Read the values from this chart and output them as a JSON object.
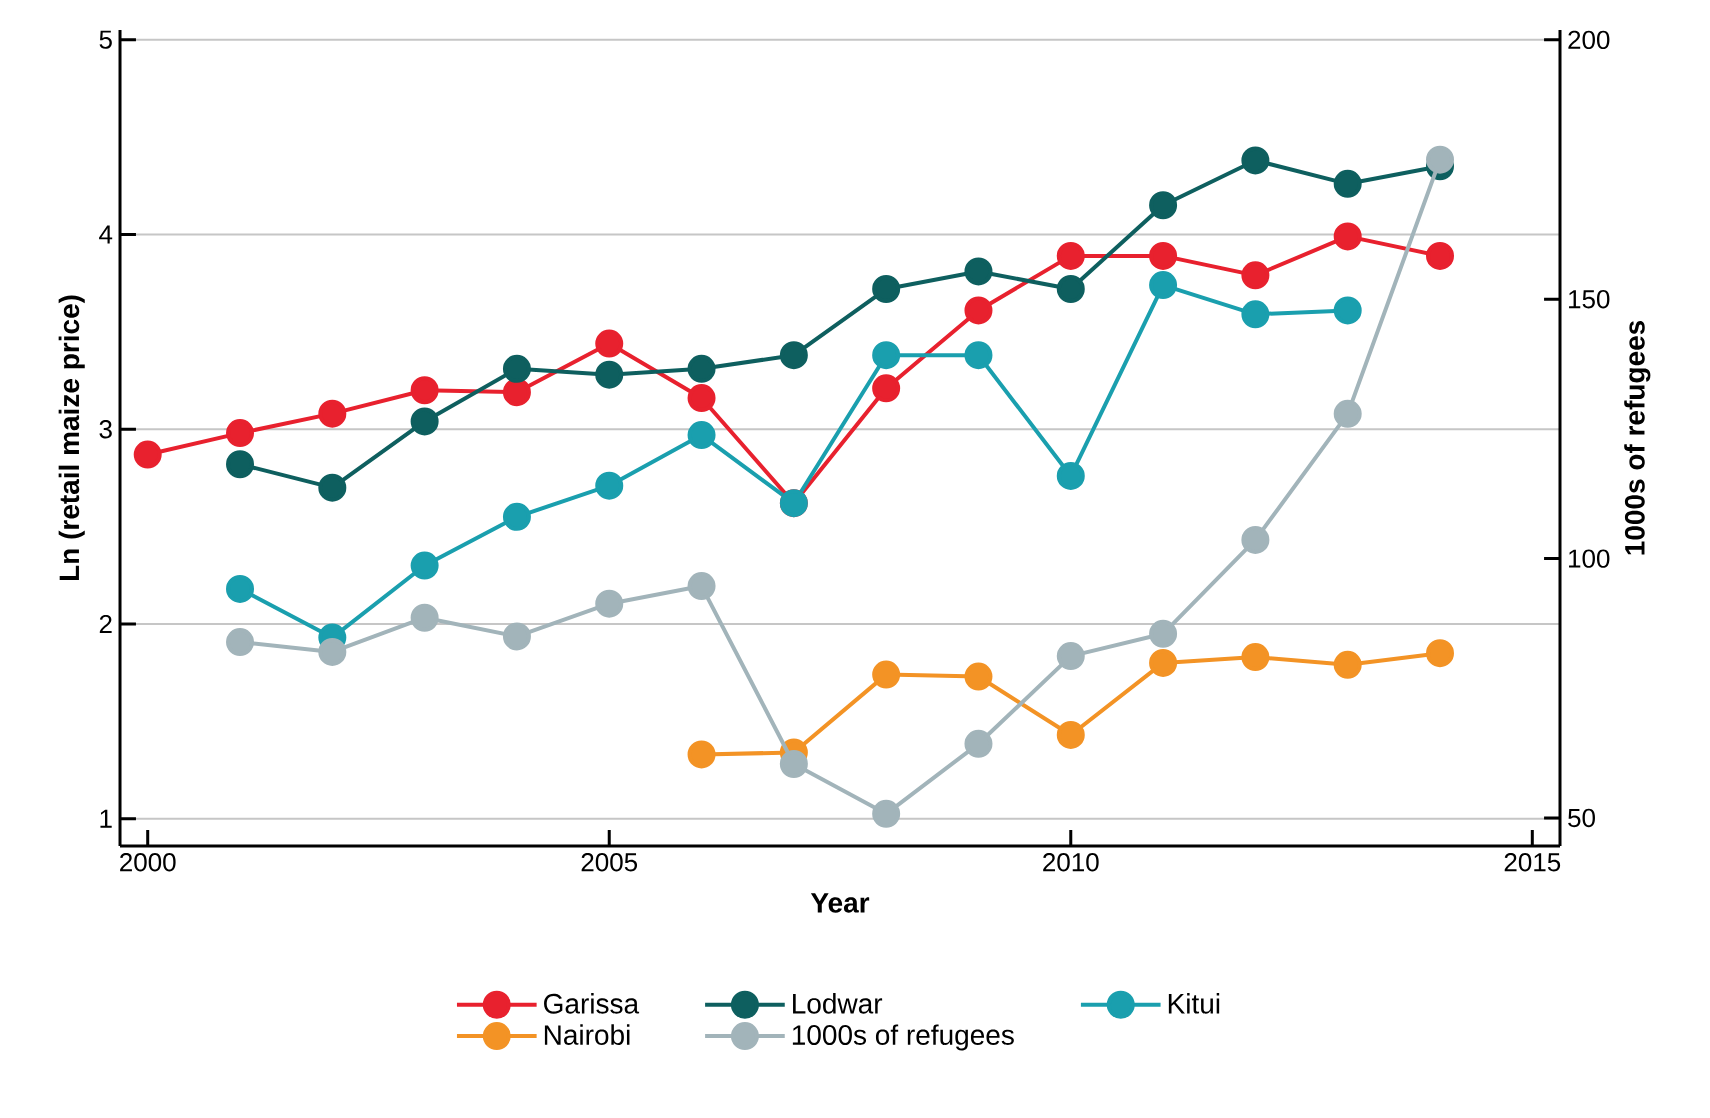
{
  "chart_data": {
    "type": "line",
    "xlabel": "Year",
    "ylabel": "Ln (retail maize price)",
    "y2label": "1000s of refugees",
    "xlim": [
      1999.7,
      2015.3
    ],
    "xticks": [
      2000,
      2005,
      2010,
      2015
    ],
    "ylim": [
      0.86,
      5.05
    ],
    "yticks": [
      1,
      2,
      3,
      4,
      5
    ],
    "y2lim": [
      44.6,
      201.9
    ],
    "y2ticks": [
      50,
      100,
      150,
      200
    ],
    "grid": "y",
    "legend": "bottom",
    "marker": "circle",
    "line_style": "solid",
    "series": [
      {
        "name": "Garissa",
        "color": "#e8212e",
        "x": [
          2000,
          2001,
          2002,
          2003,
          2004,
          2005,
          2006,
          2007,
          2008,
          2009,
          2010,
          2011,
          2012,
          2013,
          2014
        ],
        "values": [
          2.87,
          2.98,
          3.08,
          3.2,
          3.19,
          3.44,
          3.16,
          2.62,
          3.21,
          3.61,
          3.89,
          3.89,
          3.79,
          3.99,
          3.89
        ]
      },
      {
        "name": "Lodwar",
        "color": "#0e5f5f",
        "x": [
          2001,
          2002,
          2003,
          2004,
          2005,
          2006,
          2007,
          2008,
          2009,
          2010,
          2011,
          2012,
          2013,
          2014
        ],
        "values": [
          2.82,
          2.7,
          3.04,
          3.31,
          3.28,
          3.31,
          3.38,
          3.72,
          3.81,
          3.72,
          4.15,
          4.38,
          4.26,
          4.35
        ]
      },
      {
        "name": "Kitui",
        "color": "#1a9fae",
        "x": [
          2001,
          2002,
          2003,
          2004,
          2005,
          2006,
          2007,
          2008,
          2009,
          2010,
          2011,
          2012,
          2013
        ],
        "values": [
          2.18,
          1.93,
          2.3,
          2.55,
          2.71,
          2.97,
          2.62,
          3.38,
          3.38,
          2.76,
          3.74,
          3.59,
          3.61
        ]
      },
      {
        "name": "Nairobi",
        "color": "#f39325",
        "x": [
          2006,
          2007,
          2008,
          2009,
          2010,
          2011,
          2012,
          2013,
          2014
        ],
        "values": [
          1.33,
          1.34,
          1.74,
          1.73,
          1.43,
          1.8,
          1.83,
          1.79,
          1.85
        ]
      },
      {
        "name": "1000s of refugees",
        "color": "#a2b4ba",
        "axis": "y2",
        "x": [
          2001,
          2002,
          2003,
          2004,
          2005,
          2006,
          2007,
          2008,
          2009,
          2010,
          2011,
          2012,
          2013,
          2014
        ],
        "values": [
          83.9,
          82,
          88.6,
          85,
          91.3,
          94.7,
          60.4,
          50.8,
          64.3,
          81.2,
          85.5,
          103.6,
          127.9,
          176.9
        ]
      }
    ]
  }
}
